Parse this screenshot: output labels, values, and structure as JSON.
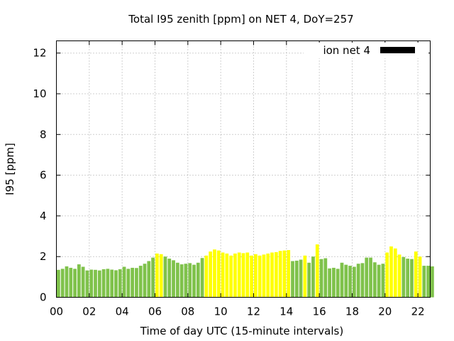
{
  "chart_data": {
    "type": "bar",
    "title": "Total I95 zenith [ppm] on NET 4, DoY=257",
    "xlabel": "Time of day UTC (15-minute intervals)",
    "ylabel": "I95 [ppm]",
    "xlim": [
      0,
      22.75
    ],
    "ylim": [
      0,
      12.6
    ],
    "x_ticks": [
      "00",
      "02",
      "04",
      "06",
      "08",
      "10",
      "12",
      "14",
      "16",
      "18",
      "20",
      "22"
    ],
    "y_ticks": [
      "0",
      "2",
      "4",
      "6",
      "8",
      "10",
      "12"
    ],
    "grid": true,
    "legend": {
      "position": "top-right",
      "entries": [
        {
          "label": "ion net 4",
          "color": "#000000"
        }
      ]
    },
    "colors": {
      "green": "#7fc24b",
      "yellow": "#ffff00"
    },
    "series": [
      {
        "name": "ion net 4",
        "values": [
          1.35,
          1.4,
          1.52,
          1.45,
          1.4,
          1.62,
          1.5,
          1.32,
          1.36,
          1.35,
          1.32,
          1.38,
          1.4,
          1.36,
          1.33,
          1.38,
          1.5,
          1.4,
          1.45,
          1.44,
          1.55,
          1.65,
          1.78,
          1.95,
          2.15,
          2.12,
          2.0,
          1.9,
          1.82,
          1.7,
          1.62,
          1.65,
          1.68,
          1.6,
          1.7,
          1.93,
          2.05,
          2.25,
          2.35,
          2.3,
          2.2,
          2.15,
          2.05,
          2.15,
          2.2,
          2.17,
          2.2,
          2.05,
          2.12,
          2.05,
          2.1,
          2.15,
          2.2,
          2.22,
          2.28,
          2.3,
          2.32,
          1.78,
          1.8,
          1.85,
          2.05,
          1.7,
          2.0,
          2.6,
          1.88,
          1.92,
          1.42,
          1.45,
          1.4,
          1.7,
          1.6,
          1.55,
          1.5,
          1.65,
          1.68,
          1.95,
          1.95,
          1.72,
          1.6,
          1.65,
          2.2,
          2.5,
          2.4,
          2.1,
          1.98,
          1.9,
          1.88,
          2.25,
          2.0,
          1.55,
          1.55,
          1.52
        ],
        "category": [
          "g",
          "g",
          "g",
          "g",
          "g",
          "g",
          "g",
          "g",
          "g",
          "g",
          "g",
          "g",
          "g",
          "g",
          "g",
          "g",
          "g",
          "g",
          "g",
          "g",
          "g",
          "g",
          "g",
          "g",
          "y",
          "y",
          "g",
          "g",
          "g",
          "g",
          "g",
          "g",
          "g",
          "g",
          "g",
          "g",
          "y",
          "y",
          "y",
          "y",
          "y",
          "y",
          "y",
          "y",
          "y",
          "y",
          "y",
          "y",
          "y",
          "y",
          "y",
          "y",
          "y",
          "y",
          "y",
          "y",
          "y",
          "g",
          "g",
          "g",
          "y",
          "g",
          "g",
          "y",
          "g",
          "g",
          "g",
          "g",
          "g",
          "g",
          "g",
          "g",
          "g",
          "g",
          "g",
          "g",
          "g",
          "g",
          "g",
          "g",
          "y",
          "y",
          "y",
          "y",
          "g",
          "g",
          "g",
          "y",
          "y",
          "g",
          "g",
          "g"
        ]
      }
    ]
  }
}
